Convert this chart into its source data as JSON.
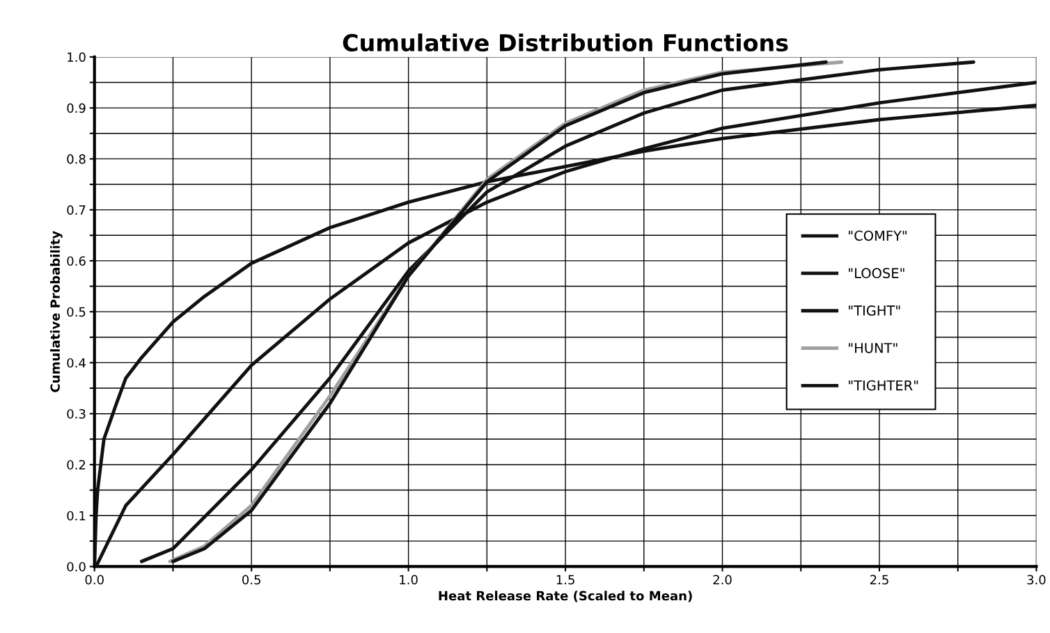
{
  "chart_data": {
    "type": "line",
    "title": "Cumulative Distribution Functions",
    "xlabel": "Heat Release Rate (Scaled to Mean)",
    "ylabel": "Cumulative Probability",
    "xlim": [
      0,
      3.0
    ],
    "ylim": [
      0,
      1.0
    ],
    "xticks": [
      {
        "value": 0,
        "label": "0.0"
      },
      {
        "value": 0.25,
        "label": null
      },
      {
        "value": 0.5,
        "label": "0.5"
      },
      {
        "value": 0.75,
        "label": null
      },
      {
        "value": 1.0,
        "label": "1.0"
      },
      {
        "value": 1.25,
        "label": null
      },
      {
        "value": 1.5,
        "label": "1.5"
      },
      {
        "value": 1.75,
        "label": null
      },
      {
        "value": 2.0,
        "label": "2.0"
      },
      {
        "value": 2.25,
        "label": null
      },
      {
        "value": 2.5,
        "label": "2.5"
      },
      {
        "value": 2.75,
        "label": null
      },
      {
        "value": 3.0,
        "label": "3.0"
      }
    ],
    "yticks": [
      {
        "value": 0,
        "label": "0.0"
      },
      {
        "value": 0.05,
        "label": null
      },
      {
        "value": 0.1,
        "label": "0.1"
      },
      {
        "value": 0.15,
        "label": null
      },
      {
        "value": 0.2,
        "label": "0.2"
      },
      {
        "value": 0.25,
        "label": null
      },
      {
        "value": 0.3,
        "label": "0.3"
      },
      {
        "value": 0.35,
        "label": null
      },
      {
        "value": 0.4,
        "label": "0.4"
      },
      {
        "value": 0.45,
        "label": null
      },
      {
        "value": 0.5,
        "label": "0.5"
      },
      {
        "value": 0.55,
        "label": null
      },
      {
        "value": 0.6,
        "label": "0.6"
      },
      {
        "value": 0.65,
        "label": null
      },
      {
        "value": 0.7,
        "label": "0.7"
      },
      {
        "value": 0.75,
        "label": null
      },
      {
        "value": 0.8,
        "label": "0.8"
      },
      {
        "value": 0.85,
        "label": null
      },
      {
        "value": 0.9,
        "label": "0.9"
      },
      {
        "value": 0.95,
        "label": null
      },
      {
        "value": 1.0,
        "label": "1.0"
      }
    ],
    "grid": true,
    "legend": "center right",
    "marker": "none",
    "line_style": "solid",
    "series": [
      {
        "name": "\"COMFY\"",
        "color": "#111111",
        "x": [
          0.005,
          0.1,
          0.25,
          0.5,
          0.75,
          1.0,
          1.25,
          1.5,
          1.75,
          2.0,
          2.5,
          3.0
        ],
        "values": [
          0.0,
          0.12,
          0.22,
          0.395,
          0.525,
          0.635,
          0.715,
          0.775,
          0.82,
          0.86,
          0.91,
          0.95
        ]
      },
      {
        "name": "\"LOOSE\"",
        "color": "#111111",
        "x": [
          0.0,
          0.005,
          0.01,
          0.03,
          0.07,
          0.1,
          0.15,
          0.25,
          0.35,
          0.5,
          0.75,
          1.0,
          1.25,
          1.5,
          1.75,
          2.0,
          2.5,
          3.0
        ],
        "values": [
          0.0,
          0.1,
          0.15,
          0.25,
          0.32,
          0.37,
          0.41,
          0.48,
          0.53,
          0.595,
          0.665,
          0.715,
          0.755,
          0.785,
          0.815,
          0.84,
          0.877,
          0.905
        ]
      },
      {
        "name": "\"TIGHT\"",
        "color": "#111111",
        "x": [
          0.15,
          0.25,
          0.5,
          0.75,
          1.0,
          1.25,
          1.5,
          1.75,
          2.0,
          2.5,
          2.8
        ],
        "values": [
          0.01,
          0.035,
          0.19,
          0.37,
          0.58,
          0.735,
          0.825,
          0.89,
          0.935,
          0.975,
          0.99
        ]
      },
      {
        "name": "\"HUNT\"",
        "color": "#a0a0a0",
        "x": [
          0.24,
          0.35,
          0.5,
          0.75,
          1.0,
          1.25,
          1.5,
          1.75,
          2.0,
          2.38
        ],
        "values": [
          0.01,
          0.04,
          0.12,
          0.335,
          0.57,
          0.76,
          0.87,
          0.935,
          0.97,
          0.99
        ]
      },
      {
        "name": "\"TIGHTER\"",
        "color": "#111111",
        "x": [
          0.25,
          0.35,
          0.5,
          0.75,
          1.0,
          1.25,
          1.5,
          1.75,
          2.0,
          2.33
        ],
        "values": [
          0.01,
          0.035,
          0.11,
          0.32,
          0.57,
          0.755,
          0.865,
          0.93,
          0.967,
          0.99
        ]
      }
    ]
  }
}
